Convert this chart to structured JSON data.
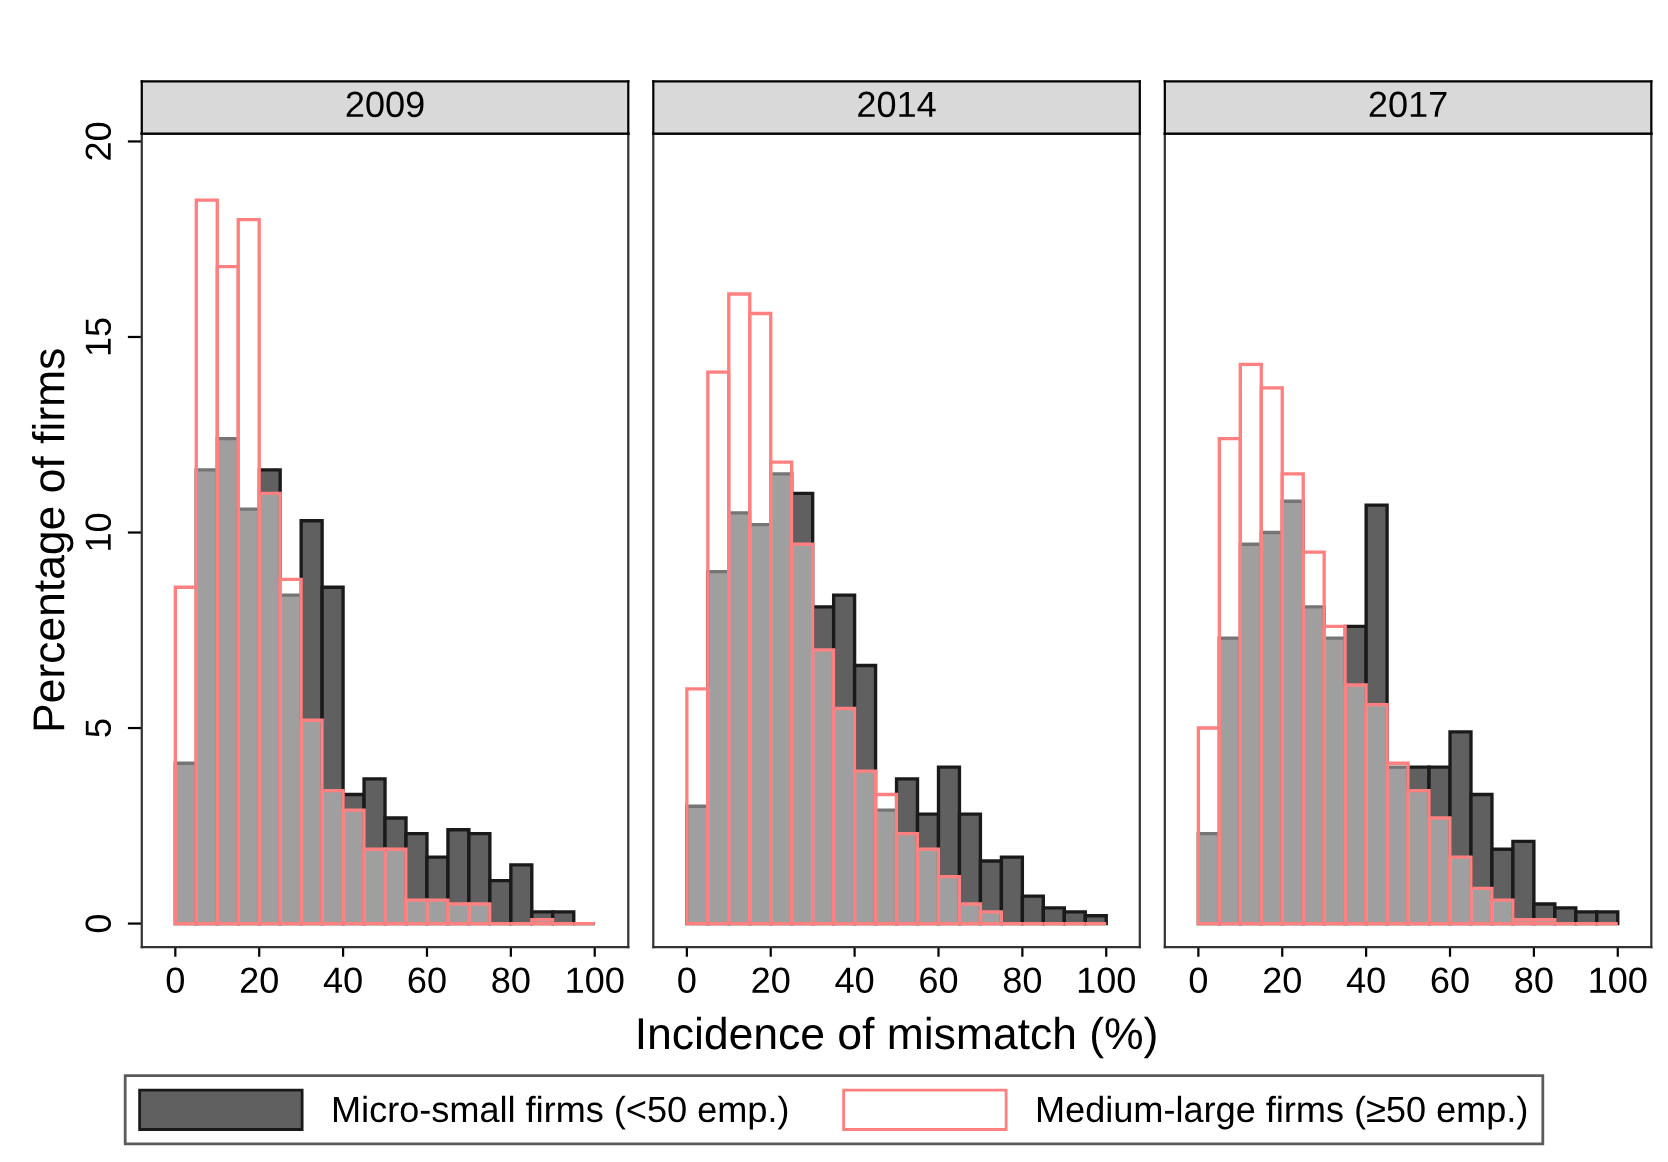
{
  "chart_data": [
    {
      "type": "histogram",
      "title": "2009",
      "ylabel": "Percentage of firms",
      "bins": [
        0,
        5,
        10,
        15,
        20,
        25,
        30,
        35,
        40,
        45,
        50,
        55,
        60,
        65,
        70,
        75,
        80,
        85,
        90,
        95,
        100
      ],
      "xlim": [
        -8,
        108
      ],
      "xticks": [
        0,
        20,
        40,
        60,
        80,
        100
      ],
      "ylim": [
        -0.6,
        20.2
      ],
      "yticks": [
        0,
        5,
        10,
        15,
        20
      ],
      "legend": "bottom",
      "series": [
        {
          "name": "Micro-small firms (<50 emp.)",
          "color": "#606060",
          "values": [
            4.1,
            11.6,
            12.4,
            10.6,
            11.6,
            8.4,
            10.3,
            8.6,
            3.3,
            3.7,
            2.7,
            2.3,
            1.7,
            2.4,
            2.3,
            1.1,
            1.5,
            0.3,
            0.3,
            0
          ]
        },
        {
          "name": "Medium-large firms (≥50 emp.)",
          "color": "#ff8080",
          "values": [
            8.6,
            18.5,
            16.8,
            18.0,
            11.0,
            8.8,
            5.2,
            3.4,
            2.9,
            1.9,
            1.9,
            0.6,
            0.6,
            0.5,
            0.5,
            0,
            0,
            0.1,
            0,
            0
          ]
        }
      ]
    },
    {
      "type": "histogram",
      "title": "2014",
      "xlabel": "Incidence of mismatch (%)",
      "bins": [
        0,
        5,
        10,
        15,
        20,
        25,
        30,
        35,
        40,
        45,
        50,
        55,
        60,
        65,
        70,
        75,
        80,
        85,
        90,
        95,
        100
      ],
      "xlim": [
        -8,
        108
      ],
      "xticks": [
        0,
        20,
        40,
        60,
        80,
        100
      ],
      "ylim": [
        -0.6,
        20.2
      ],
      "yticks": [
        0,
        5,
        10,
        15,
        20
      ],
      "tick_labels": "x",
      "series": [
        {
          "color": "#606060",
          "values": [
            3.0,
            9.0,
            10.5,
            10.2,
            11.5,
            11.0,
            8.1,
            8.4,
            6.6,
            2.9,
            3.7,
            2.8,
            4.0,
            2.8,
            1.6,
            1.7,
            0.7,
            0.4,
            0.3,
            0.2
          ]
        },
        {
          "color": "#ff8080",
          "values": [
            6.0,
            14.1,
            16.1,
            15.6,
            11.8,
            9.7,
            7.0,
            5.5,
            3.9,
            3.3,
            2.3,
            1.9,
            1.2,
            0.5,
            0.3,
            0,
            0,
            0,
            0,
            0
          ]
        }
      ]
    },
    {
      "type": "histogram",
      "title": "2017",
      "bins": [
        0,
        5,
        10,
        15,
        20,
        25,
        30,
        35,
        40,
        45,
        50,
        55,
        60,
        65,
        70,
        75,
        80,
        85,
        90,
        95,
        100
      ],
      "xlim": [
        -8,
        108
      ],
      "xticks": [
        0,
        20,
        40,
        60,
        80,
        100
      ],
      "ylim": [
        -0.6,
        20.2
      ],
      "yticks": [
        0,
        5,
        10,
        15,
        20
      ],
      "tick_labels": "x",
      "series": [
        {
          "color": "#606060",
          "values": [
            2.3,
            7.3,
            9.7,
            10.0,
            10.8,
            8.1,
            7.3,
            7.6,
            10.7,
            4.0,
            4.0,
            4.0,
            4.9,
            3.3,
            1.9,
            2.1,
            0.5,
            0.4,
            0.3,
            0.3
          ]
        },
        {
          "color": "#ff8080",
          "values": [
            5.0,
            12.4,
            14.3,
            13.7,
            11.5,
            9.5,
            7.6,
            6.1,
            5.6,
            4.1,
            3.4,
            2.7,
            1.7,
            0.9,
            0.6,
            0.1,
            0.1,
            0,
            0,
            0
          ]
        }
      ]
    }
  ]
}
